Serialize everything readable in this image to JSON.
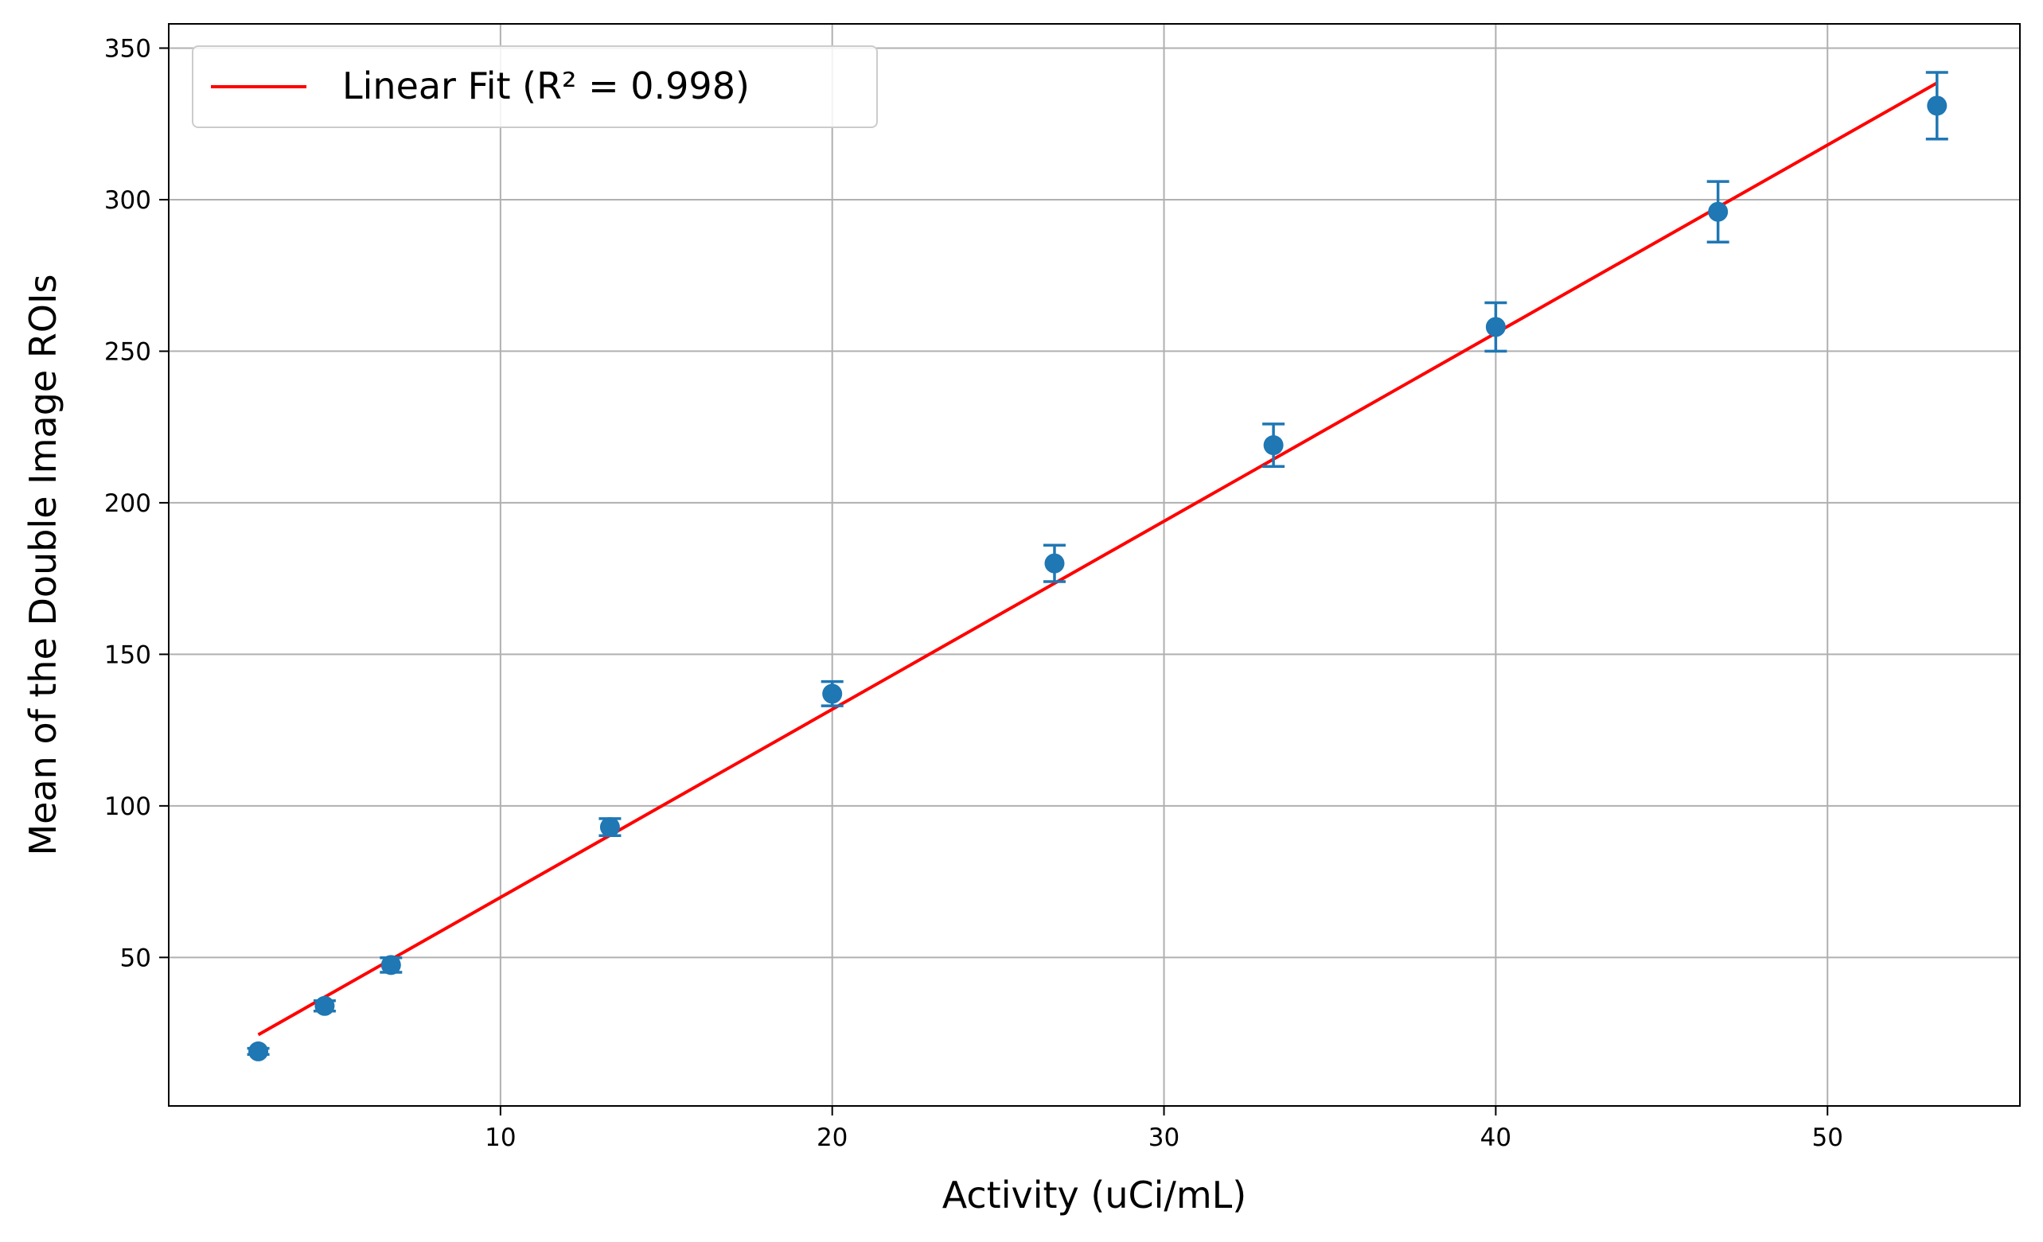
{
  "chart_data": {
    "type": "scatter",
    "title": "",
    "xlabel": "Activity (uCi/mL)",
    "ylabel": "Mean of the Double Image ROIs",
    "xlim": [
      0.0,
      55.8
    ],
    "ylim": [
      1.0,
      358.0
    ],
    "x_ticks": [
      10,
      20,
      30,
      40,
      50
    ],
    "y_ticks": [
      50,
      100,
      150,
      200,
      250,
      300,
      350
    ],
    "grid": true,
    "legend_position": "top-left",
    "colors": {
      "points": "#1f77b4",
      "fit": "#ff0000",
      "grid": "#b0b0b0"
    },
    "series": [
      {
        "kind": "errorbar-points",
        "x": [
          2.7,
          4.7,
          6.7,
          13.3,
          20.0,
          26.7,
          33.3,
          40.0,
          46.7,
          53.3
        ],
        "y": [
          19,
          34,
          47.5,
          93,
          137,
          180,
          219,
          258,
          296,
          331
        ],
        "yerr": [
          1.0,
          1.7,
          2.4,
          2.8,
          4.0,
          6.0,
          7.0,
          8.0,
          10.0,
          11.0
        ]
      },
      {
        "kind": "line",
        "name": "Linear Fit (R² = 0.998)",
        "x": [
          2.7,
          53.3
        ],
        "y": [
          24.5,
          338.5
        ]
      }
    ]
  }
}
